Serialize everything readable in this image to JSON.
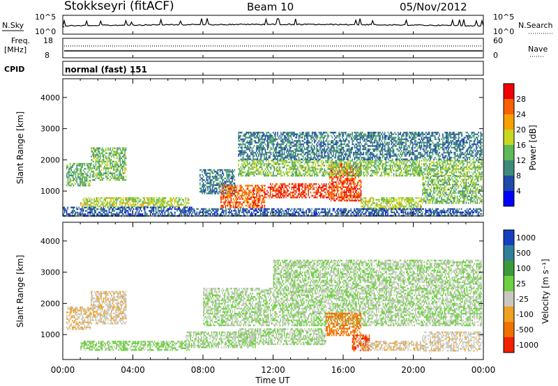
{
  "header": {
    "station": "Stokkseyri (fitACF)",
    "beam": "Beam 10",
    "date": "05/Nov/2012"
  },
  "noise_panel": {
    "left_label": "N.Sky",
    "right_label": "N.Search",
    "left_ticks": [
      "10^5",
      "10^0"
    ],
    "right_ticks": [
      "10^5",
      "10^0"
    ]
  },
  "freq_panel": {
    "left_label": "Freq.",
    "left_unit": "[MHz]",
    "right_label": "Nave",
    "left_ticks": [
      "18",
      "8"
    ],
    "right_ticks": [
      "60",
      "0"
    ]
  },
  "cpid": {
    "label": "CPID",
    "value": "normal (fast) 151"
  },
  "colors": {
    "power_scale": [
      "#0000ff",
      "#1f4aa8",
      "#3f8a78",
      "#5fb85a",
      "#c8d820",
      "#f8a000",
      "#f86000",
      "#f00000"
    ],
    "velocity_scale": [
      "#1440c0",
      "#2f7f9a",
      "#3a9a3a",
      "#6cd040",
      "#c8c8c0",
      "#f0a020",
      "#f07000",
      "#f02000"
    ]
  },
  "chart_data": [
    {
      "type": "heatmap",
      "panel": "power",
      "title": "",
      "ylabel": "Slant Range [km]",
      "xlabel": "",
      "x_ticks": [
        "00:00",
        "04:00",
        "08:00",
        "12:00",
        "16:00",
        "20:00",
        "00:00"
      ],
      "y_ticks": [
        "1000",
        "2000",
        "3000",
        "4000"
      ],
      "ylim": [
        200,
        4600
      ],
      "colorbar": {
        "label": "Power [dB]",
        "ticks": [
          "4",
          "8",
          "12",
          "16",
          "20",
          "24",
          "28"
        ],
        "range": [
          0,
          32
        ]
      },
      "regions": [
        {
          "t": [
            0.2,
            1.6
          ],
          "r": [
            1200,
            1900
          ],
          "level": 13
        },
        {
          "t": [
            1.6,
            3.6
          ],
          "r": [
            1350,
            2400
          ],
          "level": 14
        },
        {
          "t": [
            1.0,
            7.2
          ],
          "r": [
            500,
            800
          ],
          "level": 17
        },
        {
          "t": [
            0.0,
            7.5
          ],
          "r": [
            200,
            500
          ],
          "level": 7
        },
        {
          "t": [
            7.8,
            9.8
          ],
          "r": [
            900,
            1700
          ],
          "level": 9
        },
        {
          "t": [
            9.0,
            11.5
          ],
          "r": [
            500,
            1200
          ],
          "level": 26
        },
        {
          "t": [
            11.5,
            15.5
          ],
          "r": [
            800,
            1250
          ],
          "level": 28
        },
        {
          "t": [
            15.2,
            17.0
          ],
          "r": [
            700,
            1900
          ],
          "level": 27
        },
        {
          "t": [
            10.0,
            23.9
          ],
          "r": [
            1500,
            2000
          ],
          "level": 15
        },
        {
          "t": [
            10.0,
            23.9
          ],
          "r": [
            2000,
            2900
          ],
          "level": 9
        },
        {
          "t": [
            17.0,
            20.5
          ],
          "r": [
            400,
            800
          ],
          "level": 17
        },
        {
          "t": [
            20.5,
            23.9
          ],
          "r": [
            600,
            1500
          ],
          "level": 14
        },
        {
          "t": [
            7.5,
            23.9
          ],
          "r": [
            200,
            450
          ],
          "level": 7
        }
      ]
    },
    {
      "type": "heatmap",
      "panel": "velocity",
      "title": "",
      "ylabel": "Slant Range [km]",
      "xlabel": "Time UT",
      "x_ticks": [
        "00:00",
        "04:00",
        "08:00",
        "12:00",
        "16:00",
        "20:00",
        "00:00"
      ],
      "y_ticks": [
        "1000",
        "2000",
        "3000",
        "4000"
      ],
      "ylim": [
        200,
        4600
      ],
      "colorbar": {
        "label": "Velocity [m s⁻¹]",
        "ticks": [
          "1000",
          "500",
          "100",
          "25",
          "-25",
          "-100",
          "-500",
          "-1000"
        ],
        "range": [
          -1200,
          1200
        ]
      },
      "regions": [
        {
          "t": [
            0.2,
            1.6
          ],
          "r": [
            1200,
            1900
          ],
          "v": -300
        },
        {
          "t": [
            1.6,
            3.6
          ],
          "r": [
            1350,
            2400
          ],
          "v": -250
        },
        {
          "t": [
            1.0,
            7.2
          ],
          "r": [
            500,
            800
          ],
          "v": 80
        },
        {
          "t": [
            7.0,
            11.0
          ],
          "r": [
            600,
            1100
          ],
          "v": 0
        },
        {
          "t": [
            8.0,
            23.9
          ],
          "r": [
            1300,
            2500
          ],
          "v": 0
        },
        {
          "t": [
            10.0,
            15.0
          ],
          "r": [
            700,
            1200
          ],
          "v": 0
        },
        {
          "t": [
            15.0,
            17.0
          ],
          "r": [
            1000,
            1700
          ],
          "v": -700
        },
        {
          "t": [
            16.5,
            17.5
          ],
          "r": [
            500,
            1000
          ],
          "v": -900
        },
        {
          "t": [
            17.0,
            20.5
          ],
          "r": [
            500,
            800
          ],
          "v": -250
        },
        {
          "t": [
            20.5,
            23.9
          ],
          "r": [
            500,
            1100
          ],
          "v": -200
        },
        {
          "t": [
            12.0,
            23.9
          ],
          "r": [
            2500,
            3400
          ],
          "v": 0
        }
      ]
    }
  ]
}
